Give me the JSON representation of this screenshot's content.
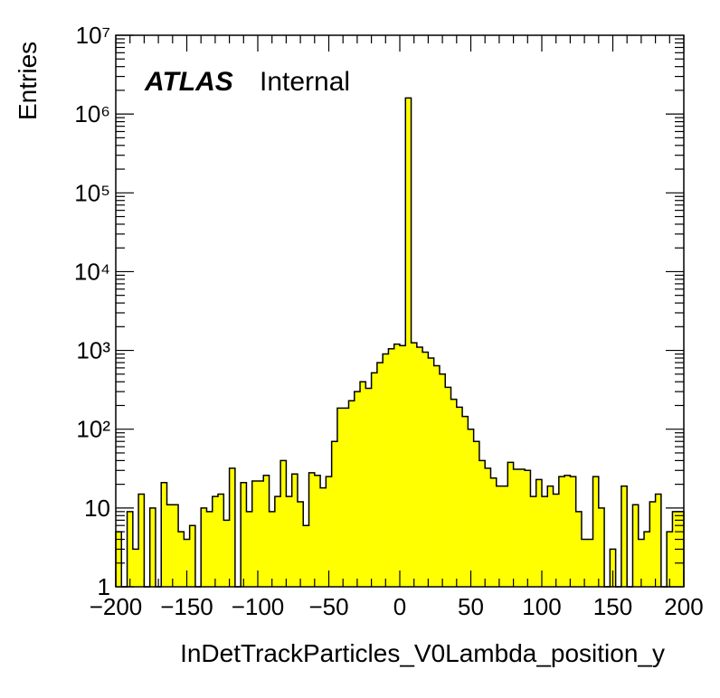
{
  "chart_data": {
    "type": "histogram",
    "xlabel": "InDetTrackParticles_V0Lambda_position_y",
    "ylabel": "Entries",
    "xlim": [
      -200,
      200
    ],
    "ylim": [
      1,
      10000000
    ],
    "log_y": true,
    "bin_width": 4,
    "fill_color": "#ffff00",
    "line_color": "#000000",
    "labels": {
      "atlas": "ATLAS",
      "status": "Internal"
    },
    "x_ticks": [
      "−200",
      "−150",
      "−100",
      "−50",
      "0",
      "50",
      "100",
      "150",
      "200"
    ],
    "y_ticks": [
      "1",
      "10",
      "10²",
      "10³",
      "10⁴",
      "10⁵",
      "10⁶",
      "10⁷"
    ],
    "bins": [
      {
        "x": -200,
        "y": 5
      },
      {
        "x": -196,
        "y": 1
      },
      {
        "x": -192,
        "y": 9
      },
      {
        "x": -188,
        "y": 3
      },
      {
        "x": -184,
        "y": 15
      },
      {
        "x": -180,
        "y": 1
      },
      {
        "x": -176,
        "y": 10
      },
      {
        "x": -172,
        "y": 1
      },
      {
        "x": -168,
        "y": 21
      },
      {
        "x": -164,
        "y": 11
      },
      {
        "x": -160,
        "y": 11
      },
      {
        "x": -156,
        "y": 5
      },
      {
        "x": -152,
        "y": 4
      },
      {
        "x": -148,
        "y": 6
      },
      {
        "x": -144,
        "y": 1
      },
      {
        "x": -140,
        "y": 10
      },
      {
        "x": -136,
        "y": 9
      },
      {
        "x": -132,
        "y": 14
      },
      {
        "x": -128,
        "y": 15
      },
      {
        "x": -124,
        "y": 7
      },
      {
        "x": -120,
        "y": 32
      },
      {
        "x": -116,
        "y": 1
      },
      {
        "x": -112,
        "y": 21
      },
      {
        "x": -108,
        "y": 9
      },
      {
        "x": -104,
        "y": 22
      },
      {
        "x": -100,
        "y": 22
      },
      {
        "x": -96,
        "y": 26
      },
      {
        "x": -92,
        "y": 9
      },
      {
        "x": -88,
        "y": 14
      },
      {
        "x": -84,
        "y": 40
      },
      {
        "x": -80,
        "y": 14
      },
      {
        "x": -76,
        "y": 27
      },
      {
        "x": -72,
        "y": 12
      },
      {
        "x": -68,
        "y": 6
      },
      {
        "x": -64,
        "y": 28
      },
      {
        "x": -60,
        "y": 26
      },
      {
        "x": -56,
        "y": 18
      },
      {
        "x": -52,
        "y": 25
      },
      {
        "x": -48,
        "y": 70
      },
      {
        "x": -44,
        "y": 185
      },
      {
        "x": -40,
        "y": 185
      },
      {
        "x": -36,
        "y": 230
      },
      {
        "x": -32,
        "y": 300
      },
      {
        "x": -28,
        "y": 400
      },
      {
        "x": -24,
        "y": 330
      },
      {
        "x": -20,
        "y": 520
      },
      {
        "x": -16,
        "y": 700
      },
      {
        "x": -12,
        "y": 900
      },
      {
        "x": -8,
        "y": 1050
      },
      {
        "x": -4,
        "y": 1200
      },
      {
        "x": 0,
        "y": 1150
      },
      {
        "x": 4,
        "y": 1600000
      },
      {
        "x": 8,
        "y": 1250
      },
      {
        "x": 12,
        "y": 1100
      },
      {
        "x": 16,
        "y": 950
      },
      {
        "x": 20,
        "y": 800
      },
      {
        "x": 24,
        "y": 640
      },
      {
        "x": 28,
        "y": 500
      },
      {
        "x": 32,
        "y": 340
      },
      {
        "x": 36,
        "y": 240
      },
      {
        "x": 40,
        "y": 190
      },
      {
        "x": 44,
        "y": 145
      },
      {
        "x": 48,
        "y": 100
      },
      {
        "x": 52,
        "y": 70
      },
      {
        "x": 56,
        "y": 40
      },
      {
        "x": 60,
        "y": 32
      },
      {
        "x": 64,
        "y": 24
      },
      {
        "x": 68,
        "y": 19
      },
      {
        "x": 72,
        "y": 19
      },
      {
        "x": 76,
        "y": 38
      },
      {
        "x": 80,
        "y": 31
      },
      {
        "x": 84,
        "y": 31
      },
      {
        "x": 88,
        "y": 30
      },
      {
        "x": 92,
        "y": 14
      },
      {
        "x": 96,
        "y": 23
      },
      {
        "x": 100,
        "y": 14
      },
      {
        "x": 104,
        "y": 19
      },
      {
        "x": 108,
        "y": 15
      },
      {
        "x": 112,
        "y": 25
      },
      {
        "x": 116,
        "y": 26
      },
      {
        "x": 120,
        "y": 25
      },
      {
        "x": 124,
        "y": 9
      },
      {
        "x": 128,
        "y": 4
      },
      {
        "x": 132,
        "y": 4
      },
      {
        "x": 136,
        "y": 25
      },
      {
        "x": 140,
        "y": 10
      },
      {
        "x": 144,
        "y": 1
      },
      {
        "x": 148,
        "y": 3
      },
      {
        "x": 152,
        "y": 1
      },
      {
        "x": 156,
        "y": 19
      },
      {
        "x": 160,
        "y": 1
      },
      {
        "x": 164,
        "y": 11
      },
      {
        "x": 168,
        "y": 4
      },
      {
        "x": 172,
        "y": 5
      },
      {
        "x": 176,
        "y": 12
      },
      {
        "x": 180,
        "y": 15
      },
      {
        "x": 184,
        "y": 1
      },
      {
        "x": 188,
        "y": 5
      },
      {
        "x": 192,
        "y": 9
      },
      {
        "x": 196,
        "y": 9
      }
    ]
  }
}
